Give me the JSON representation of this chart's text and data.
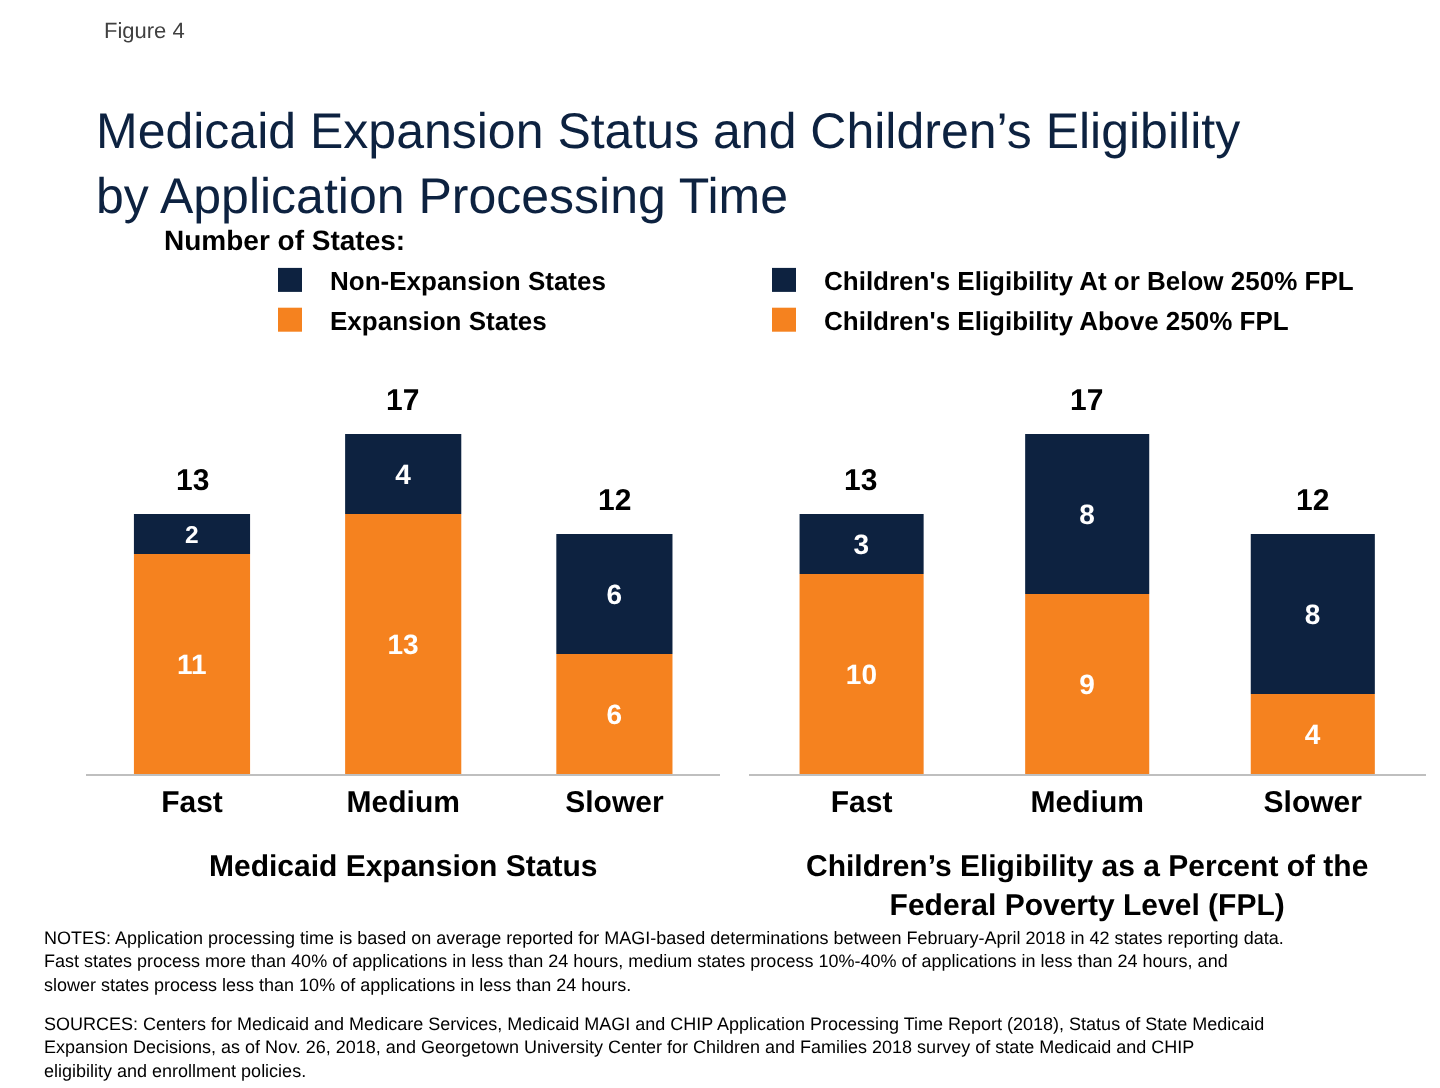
{
  "chart_data": [
    {
      "type": "bar",
      "title": "Medicaid Expansion Status and Children’s Eligibility by Application Processing Time",
      "xlabel": "Medicaid Expansion Status",
      "categories": [
        "Fast",
        "Medium",
        "Slower"
      ],
      "stacked": true,
      "data_labels": true,
      "totals": [
        "13",
        "17",
        "12"
      ],
      "legend": "top",
      "series": [
        {
          "name": "Expansion States",
          "color": "#f5821f",
          "values": [
            11,
            13,
            6
          ]
        },
        {
          "name": "Non-Expansion States",
          "color": "#0d2240",
          "values": [
            2,
            4,
            6
          ]
        }
      ],
      "annotations": [
        "Figure 4",
        "Number of States:"
      ]
    },
    {
      "type": "bar",
      "xlabel": "Children’s Eligibility as a Percent of the Federal Poverty Level (FPL)",
      "categories": [
        "Fast",
        "Medium",
        "Slower"
      ],
      "stacked": true,
      "data_labels": true,
      "totals": [
        "13",
        "17",
        "12"
      ],
      "legend": "top",
      "series": [
        {
          "name": "Children's Eligibility Above 250% FPL",
          "color": "#f5821f",
          "values": [
            10,
            9,
            4
          ]
        },
        {
          "name": "Children's Eligibility At or Below 250% FPL",
          "color": "#0d2240",
          "values": [
            3,
            8,
            8
          ]
        }
      ],
      "annotations": [
        "NOTES: Application processing time is based on average reported for MAGI-based determinations between February-April 2018 in 42 states reporting data. Fast states process more than 40% of applications in less than 24 hours, medium states process 10%-40% of applications in less than 24 hours, and slower states process less than 10% of applications in less than 24 hours.",
        "SOURCES: Centers for Medicaid and Medicare Services, Medicaid MAGI and CHIP Application Processing Time Report (2018), Status of State Medicaid Expansion Decisions, as of Nov. 26, 2018, and Georgetown University Center for Children and Families 2018 survey of state Medicaid and CHIP eligibility and enrollment policies."
      ]
    }
  ]
}
